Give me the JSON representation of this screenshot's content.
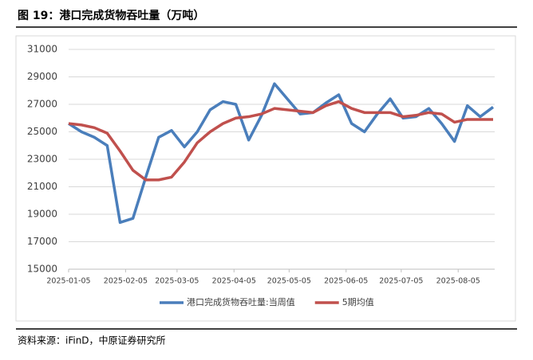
{
  "chart_data": {
    "type": "line",
    "title": "图 19：港口完成货物吞吐量（万吨）",
    "source": "资料来源：iFinD，中原证券研究所",
    "x": [
      "2025-01-05",
      "2025-01-12",
      "2025-01-19",
      "2025-01-26",
      "2025-02-02",
      "2025-02-09",
      "2025-02-16",
      "2025-02-23",
      "2025-03-02",
      "2025-03-09",
      "2025-03-16",
      "2025-03-23",
      "2025-03-30",
      "2025-04-06",
      "2025-04-13",
      "2025-04-20",
      "2025-04-27",
      "2025-05-04",
      "2025-05-11",
      "2025-05-18",
      "2025-05-25",
      "2025-06-01",
      "2025-06-08",
      "2025-06-15",
      "2025-06-22",
      "2025-06-29",
      "2025-07-06",
      "2025-07-13",
      "2025-07-20",
      "2025-07-27",
      "2025-08-03",
      "2025-08-10",
      "2025-08-17",
      "2025-08-24"
    ],
    "series": [
      {
        "name": "港口完成货物吞吐量:当周值",
        "color": "#4a7ebb",
        "values": [
          25600,
          25000,
          24600,
          24000,
          18400,
          18700,
          21700,
          24600,
          25100,
          23900,
          25000,
          26600,
          27200,
          27000,
          24400,
          26200,
          28500,
          27400,
          26300,
          26400,
          27100,
          27700,
          25600,
          25000,
          26300,
          27400,
          26000,
          26100,
          26700,
          25600,
          24300,
          26900,
          26100,
          26800
        ]
      },
      {
        "name": "5期均值",
        "color": "#c0504d",
        "values": [
          25600,
          25500,
          25300,
          24900,
          23600,
          22200,
          21500,
          21500,
          21700,
          22800,
          24200,
          25000,
          25600,
          26000,
          26100,
          26300,
          26700,
          26600,
          26500,
          26400,
          26900,
          27200,
          26700,
          26400,
          26400,
          26400,
          26100,
          26200,
          26400,
          26300,
          25700,
          25900,
          25900,
          25900
        ]
      }
    ],
    "xlim": [
      "2025-01-05",
      "2025-08-24"
    ],
    "xticks": [
      "2025-01-05",
      "2025-02-05",
      "2025-03-05",
      "2025-04-05",
      "2025-05-05",
      "2025-06-05",
      "2025-07-05",
      "2025-08-05"
    ],
    "ylim": [
      15000,
      31000
    ],
    "yticks": [
      15000,
      17000,
      19000,
      21000,
      23000,
      25000,
      27000,
      29000,
      31000
    ],
    "grid": true,
    "legend": "bottom"
  }
}
